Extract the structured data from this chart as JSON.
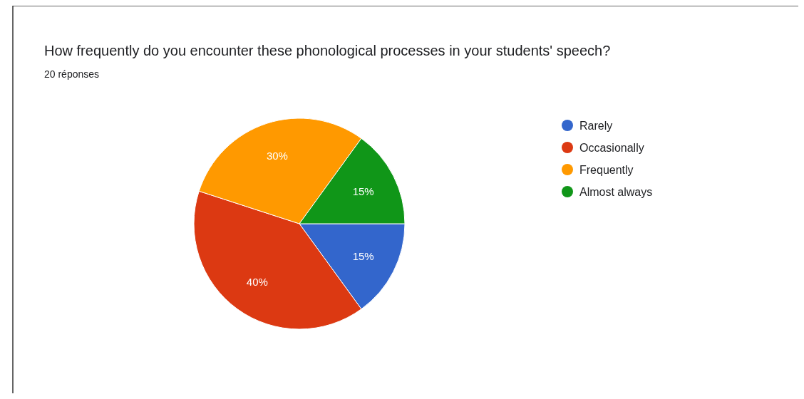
{
  "chart_data": {
    "type": "pie",
    "title": "How frequently do you encounter these phonological processes in your students' speech?",
    "subtitle": "20 réponses",
    "categories": [
      "Rarely",
      "Occasionally",
      "Frequently",
      "Almost always"
    ],
    "values": [
      15,
      40,
      30,
      15
    ],
    "colors": [
      "#3366cc",
      "#dc3912",
      "#ff9900",
      "#109618"
    ],
    "value_labels": [
      "15%",
      "40%",
      "30%",
      "15%"
    ],
    "legend": "right"
  }
}
